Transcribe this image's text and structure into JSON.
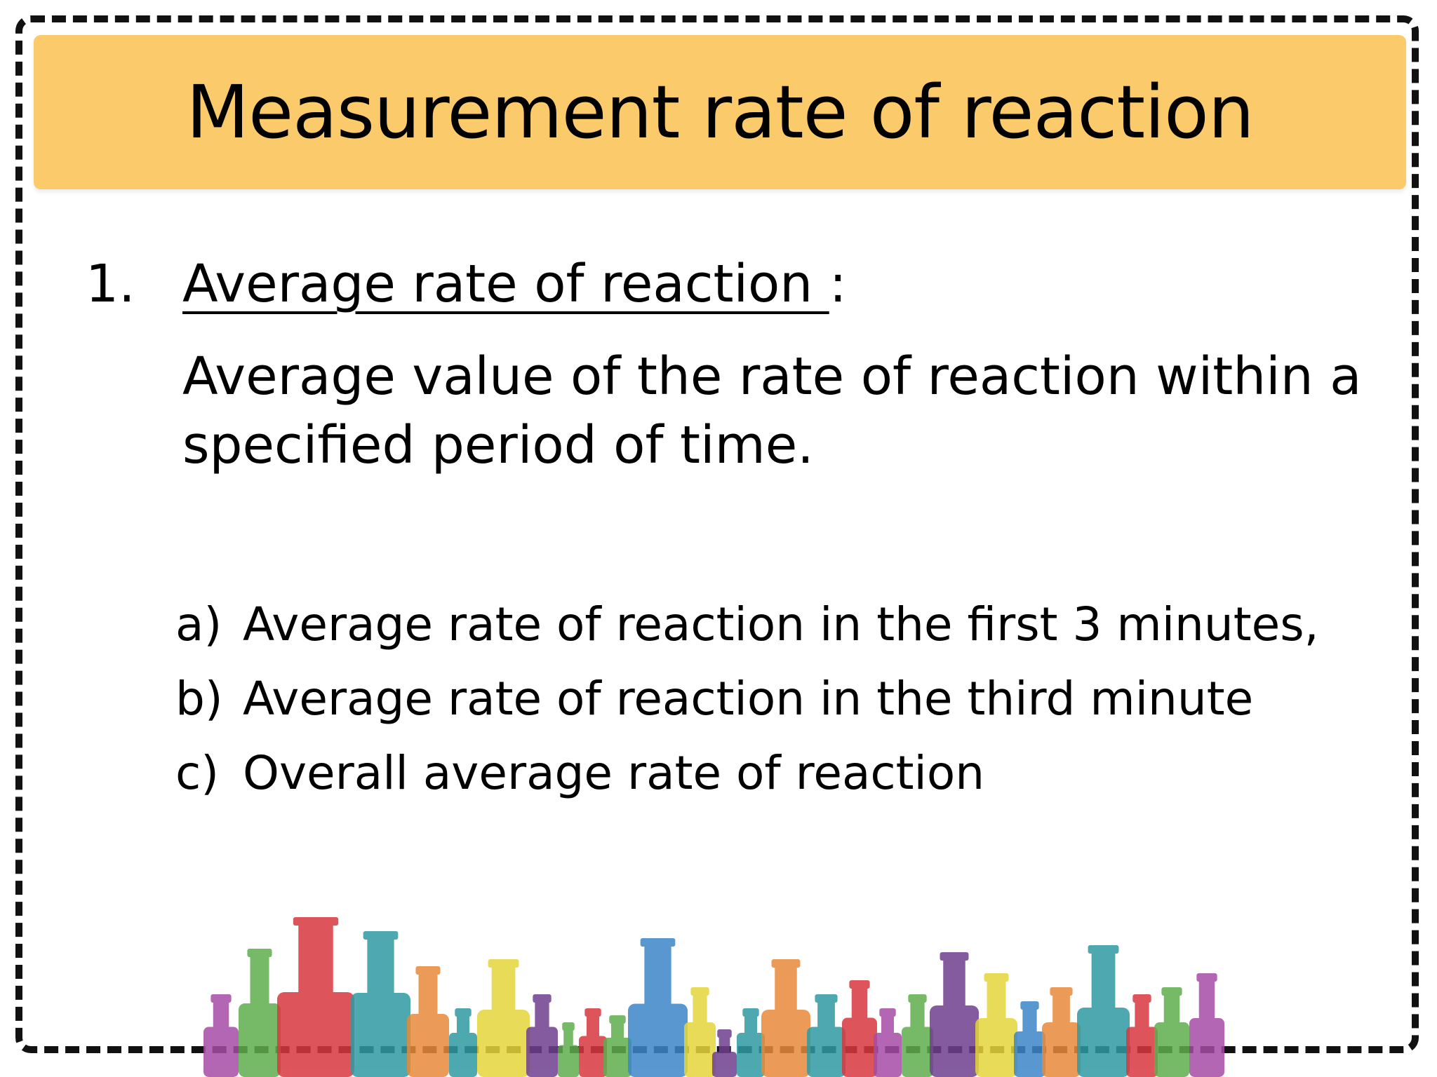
{
  "slide": {
    "title": "Measurement rate of reaction",
    "item1": {
      "number": "1.",
      "heading": "Average rate of reaction ",
      "heading_suffix": ":",
      "definition": "Average value of the rate of reaction within a specified period of time."
    },
    "subitems": [
      {
        "marker": "a)",
        "text": "Average rate of reaction in the first 3 minutes,"
      },
      {
        "marker": "b)",
        "text": "Average rate of reaction in the third minute"
      },
      {
        "marker": "c)",
        "text": "Overall average rate of reaction"
      }
    ]
  },
  "colors": {
    "title_bar": "#fbcb6b",
    "frame": "#111111",
    "bottles": [
      "#a64ca6",
      "#5fad4d",
      "#d8383f",
      "#2f9aa3",
      "#e88a3a",
      "#e5d53b",
      "#3c86c8",
      "#6f3f8f"
    ]
  },
  "decoration": {
    "name": "chemistry-bottles-illustration"
  }
}
